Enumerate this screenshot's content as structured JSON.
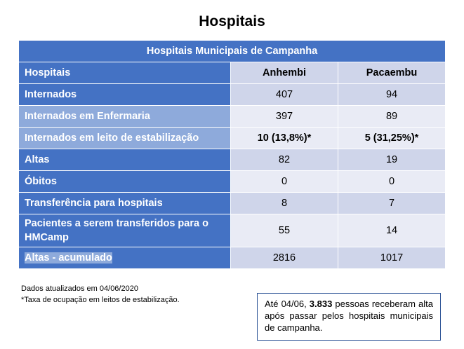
{
  "page_title": "Hospitais",
  "table": {
    "banner": "Hospitais Municipais de Campanha",
    "columns": [
      "Hospitais",
      "Anhembi",
      "Pacaembu"
    ],
    "rows": [
      {
        "label": "Internados",
        "anhembi": "407",
        "pacaembu": "94"
      },
      {
        "label": "Internados em Enfermaria",
        "anhembi": "397",
        "pacaembu": "89"
      },
      {
        "label": "Internados em leito de estabilização",
        "anhembi": "10 (13,8%)*",
        "pacaembu": "5 (31,25%)*"
      },
      {
        "label": "Altas",
        "anhembi": "82",
        "pacaembu": "19"
      },
      {
        "label": "Óbitos",
        "anhembi": "0",
        "pacaembu": "0"
      },
      {
        "label": "Transferência para hospitais",
        "anhembi": "8",
        "pacaembu": "7"
      },
      {
        "label": "Pacientes a serem transferidos para o HMCamp",
        "anhembi": "55",
        "pacaembu": "14"
      },
      {
        "label": "Altas - acumulado",
        "anhembi": "2816",
        "pacaembu": "1017"
      }
    ]
  },
  "notes": {
    "updated": "Dados atualizados em 04/06/2020",
    "footnote": "*Taxa de ocupação em leitos de estabilização."
  },
  "callout": {
    "prefix": "Até 04/06, ",
    "highlight": "3.833",
    "suffix": " pessoas receberam alta após passar pelos hospitais municipais de campanha."
  },
  "colors": {
    "header_blue": "#4472c4",
    "light_blue": "#8eaadb",
    "cell_dark": "#cfd5ea",
    "cell_light": "#e9ebf5"
  }
}
